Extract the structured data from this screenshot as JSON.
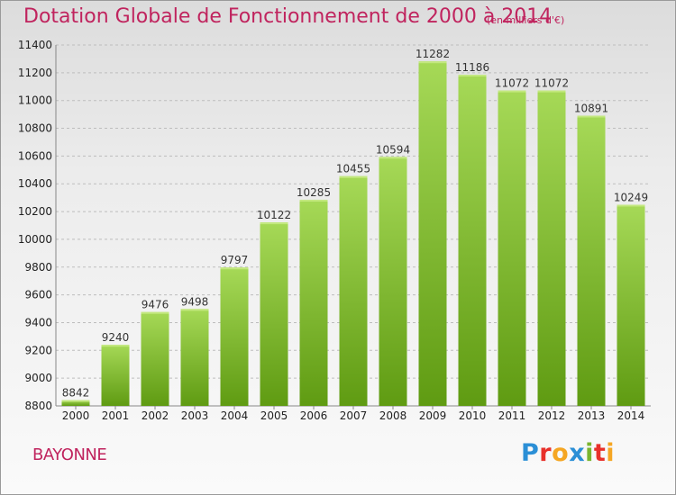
{
  "title": "Dotation Globale de Fonctionnement de 2000 à 2014",
  "subtitle": "(en milliers d'€)",
  "commune": "BAYONNE",
  "logo": {
    "text": "Proxiti",
    "letters": [
      {
        "char": "P",
        "color": "#2b8fd6"
      },
      {
        "char": "r",
        "color": "#e8302a"
      },
      {
        "char": "o",
        "color": "#f5a623"
      },
      {
        "char": "x",
        "color": "#2b8fd6"
      },
      {
        "char": "i",
        "color": "#7ab52e"
      },
      {
        "char": "t",
        "color": "#e8302a"
      },
      {
        "char": "i",
        "color": "#f5a623"
      }
    ]
  },
  "colors": {
    "title": "#c0245e",
    "bar_top": "#a6d957",
    "bar_bottom": "#5f9b12",
    "grid": "#bdbdbd",
    "axis_text": "#222222"
  },
  "chart_data": {
    "type": "bar",
    "title": "Dotation Globale de Fonctionnement de 2000 à 2014",
    "subtitle": "(en milliers d'€)",
    "categories": [
      "2000",
      "2001",
      "2002",
      "2003",
      "2004",
      "2005",
      "2006",
      "2007",
      "2008",
      "2009",
      "2010",
      "2011",
      "2012",
      "2013",
      "2014"
    ],
    "values": [
      8842,
      9240,
      9476,
      9498,
      9797,
      10122,
      10285,
      10455,
      10594,
      11282,
      11186,
      11072,
      11072,
      10891,
      10249
    ],
    "xlabel": "",
    "ylabel": "",
    "ylim": [
      8800,
      11400
    ],
    "yticks": [
      8800,
      9000,
      9200,
      9400,
      9600,
      9800,
      10000,
      10200,
      10400,
      10600,
      10800,
      11000,
      11200,
      11400
    ],
    "grid": true,
    "legend": "none"
  }
}
